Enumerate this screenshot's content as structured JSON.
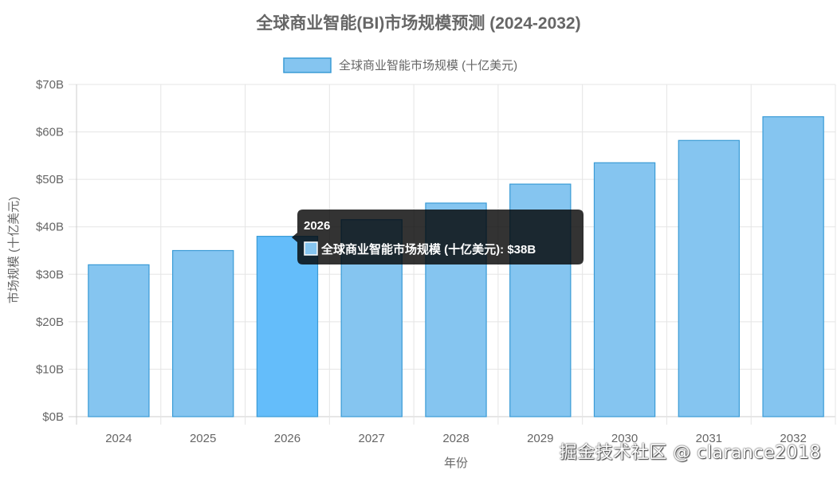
{
  "chart_data": {
    "type": "bar",
    "title": "全球商业智能(BI)市场规模预测 (2024-2032)",
    "legend": "全球商业智能市场规模 (十亿美元)",
    "xlabel": "年份",
    "ylabel": "市场规模 (十亿美元)",
    "categories": [
      "2024",
      "2025",
      "2026",
      "2027",
      "2028",
      "2029",
      "2030",
      "2031",
      "2032"
    ],
    "series": [
      {
        "name": "全球商业智能市场规模 (十亿美元)",
        "values": [
          32,
          35,
          38,
          41.5,
          45,
          49,
          53.5,
          58.2,
          63.2
        ]
      }
    ],
    "ylim": [
      0,
      70
    ],
    "yticks": [
      0,
      10,
      20,
      30,
      40,
      50,
      60,
      70
    ],
    "ytick_labels": [
      "$0B",
      "$10B",
      "$20B",
      "$30B",
      "$40B",
      "$50B",
      "$60B",
      "$70B"
    ],
    "grid": true,
    "legend_position": "top",
    "colors": {
      "bar_fill": "#85c5f0",
      "bar_border": "#3a9bd6",
      "bar_highlight": "#64bdfa"
    },
    "tooltip": {
      "active_index": 2,
      "title": "2026",
      "body": "全球商业智能市场规模 (十亿美元): $38B"
    }
  },
  "watermark": "掘金技术社区 @ clarance2018"
}
